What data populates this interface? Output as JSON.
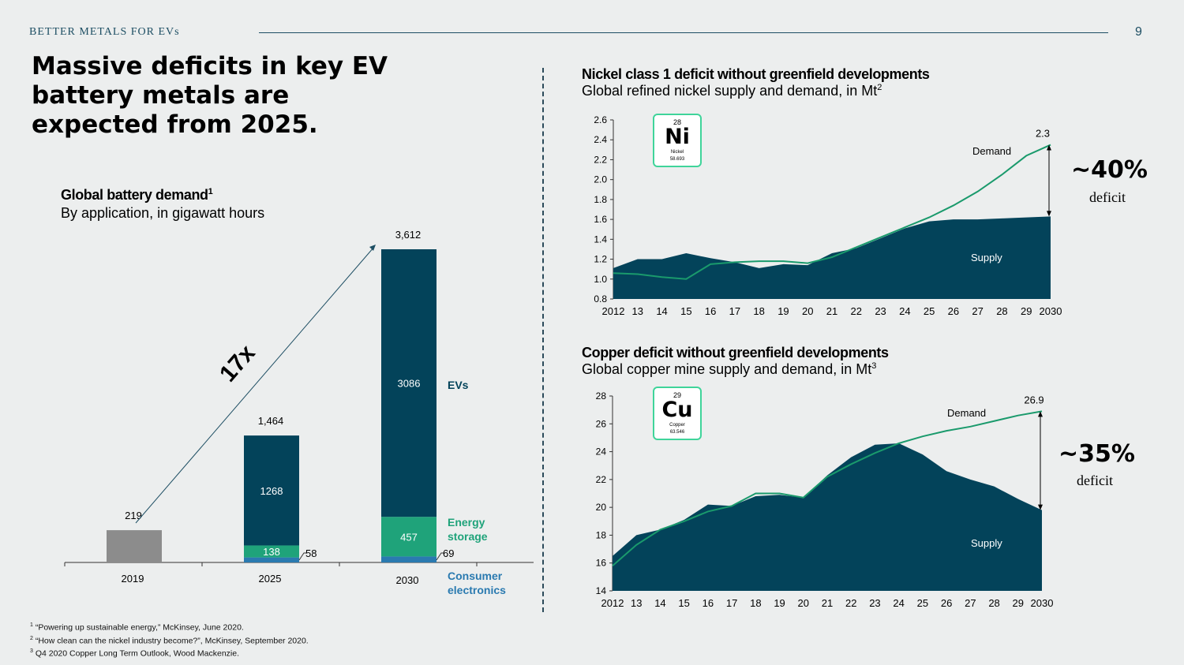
{
  "header": {
    "brand": "BETTER METALS FOR EVs",
    "page_number": "9"
  },
  "headline": "Massive deficits in key EV battery metals are expected from 2025.",
  "battery": {
    "title": "Global battery demand",
    "title_sup": "1",
    "subtitle": "By application, in gigawatt hours",
    "growth_label": "17x"
  },
  "nickel": {
    "title": "Nickel class 1 deficit without greenfield developments",
    "subtitle": "Global refined nickel supply and demand, in Mt",
    "subtitle_sup": "2",
    "element": {
      "number": "28",
      "symbol": "Ni",
      "name": "Nickel",
      "weight": "58.693"
    },
    "deficit_pct": "~40%",
    "deficit_label": "deficit"
  },
  "copper": {
    "title": "Copper deficit without greenfield developments",
    "subtitle": "Global copper mine supply and demand, in Mt",
    "subtitle_sup": "3",
    "element": {
      "number": "29",
      "symbol": "Cu",
      "name": "Copper",
      "weight": "63.546"
    },
    "deficit_pct": "~35%",
    "deficit_label": "deficit"
  },
  "footnotes": [
    {
      "sup": "1",
      "text": "“Powering up sustainable energy,” McKinsey, June 2020."
    },
    {
      "sup": "2",
      "text": "“How clean can the nickel industry become?”, McKinsey, September 2020."
    },
    {
      "sup": "3",
      "text": "Q4 2020 Copper Long Term Outlook, Wood Mackenzie."
    }
  ],
  "colors": {
    "navy": "#03435a",
    "green": "#1fa37a",
    "blue": "#2a7ab0",
    "gray": "#8c8c8c",
    "line": "#1a9a6c"
  },
  "chart_data": [
    {
      "type": "bar",
      "title": "Global battery demand",
      "subtitle": "By application, in gigawatt hours",
      "categories": [
        "2019",
        "2025",
        "2030"
      ],
      "totals": [
        219,
        1464,
        3612
      ],
      "series": [
        {
          "name": "Consumer electronics",
          "values": [
            null,
            58,
            69
          ]
        },
        {
          "name": "Energy storage",
          "values": [
            null,
            138,
            457
          ]
        },
        {
          "name": "EVs",
          "values": [
            null,
            1268,
            3086
          ]
        }
      ],
      "series_labels": [
        "EVs",
        "Energy storage",
        "Consumer electronics"
      ],
      "annotation": "17x"
    },
    {
      "type": "area",
      "title": "Nickel class 1 deficit without greenfield developments",
      "x": [
        "2012",
        "13",
        "14",
        "15",
        "16",
        "17",
        "18",
        "19",
        "20",
        "21",
        "22",
        "23",
        "24",
        "25",
        "26",
        "27",
        "28",
        "29",
        "2030"
      ],
      "ylim": [
        0.8,
        2.6
      ],
      "yticks": [
        "0.8",
        "1.0",
        "1.2",
        "1.4",
        "1.6",
        "1.8",
        "2.0",
        "2.2",
        "2.4",
        "2.6"
      ],
      "series": [
        {
          "name": "Supply",
          "kind": "area",
          "values": [
            1.11,
            1.2,
            1.2,
            1.26,
            1.21,
            1.17,
            1.11,
            1.15,
            1.14,
            1.26,
            1.31,
            1.41,
            1.51,
            1.58,
            1.6,
            1.6,
            1.61,
            1.62,
            1.63
          ]
        },
        {
          "name": "Demand",
          "kind": "line",
          "values": [
            1.06,
            1.05,
            1.02,
            1.0,
            1.15,
            1.17,
            1.18,
            1.18,
            1.16,
            1.22,
            1.32,
            1.42,
            1.52,
            1.62,
            1.74,
            1.88,
            2.05,
            2.24,
            2.35
          ]
        }
      ],
      "end_label": "2.3",
      "deficit": "~40%"
    },
    {
      "type": "area",
      "title": "Copper deficit without greenfield developments",
      "x": [
        "2012",
        "13",
        "14",
        "15",
        "16",
        "17",
        "18",
        "19",
        "20",
        "21",
        "22",
        "23",
        "24",
        "25",
        "26",
        "27",
        "28",
        "29",
        "2030"
      ],
      "ylim": [
        14,
        28
      ],
      "yticks": [
        "14",
        "16",
        "18",
        "20",
        "22",
        "24",
        "26",
        "28"
      ],
      "series": [
        {
          "name": "Supply",
          "kind": "area",
          "values": [
            16.5,
            18.0,
            18.4,
            19.1,
            20.2,
            20.1,
            20.8,
            20.9,
            20.7,
            22.3,
            23.6,
            24.5,
            24.6,
            23.8,
            22.6,
            22.0,
            21.5,
            20.6,
            19.8
          ]
        },
        {
          "name": "Demand",
          "kind": "line",
          "values": [
            15.8,
            17.3,
            18.4,
            19.0,
            19.7,
            20.1,
            21.0,
            21.0,
            20.7,
            22.2,
            23.1,
            23.9,
            24.6,
            25.1,
            25.5,
            25.8,
            26.2,
            26.6,
            26.9
          ]
        }
      ],
      "end_label": "26.9",
      "deficit": "~35%"
    }
  ]
}
